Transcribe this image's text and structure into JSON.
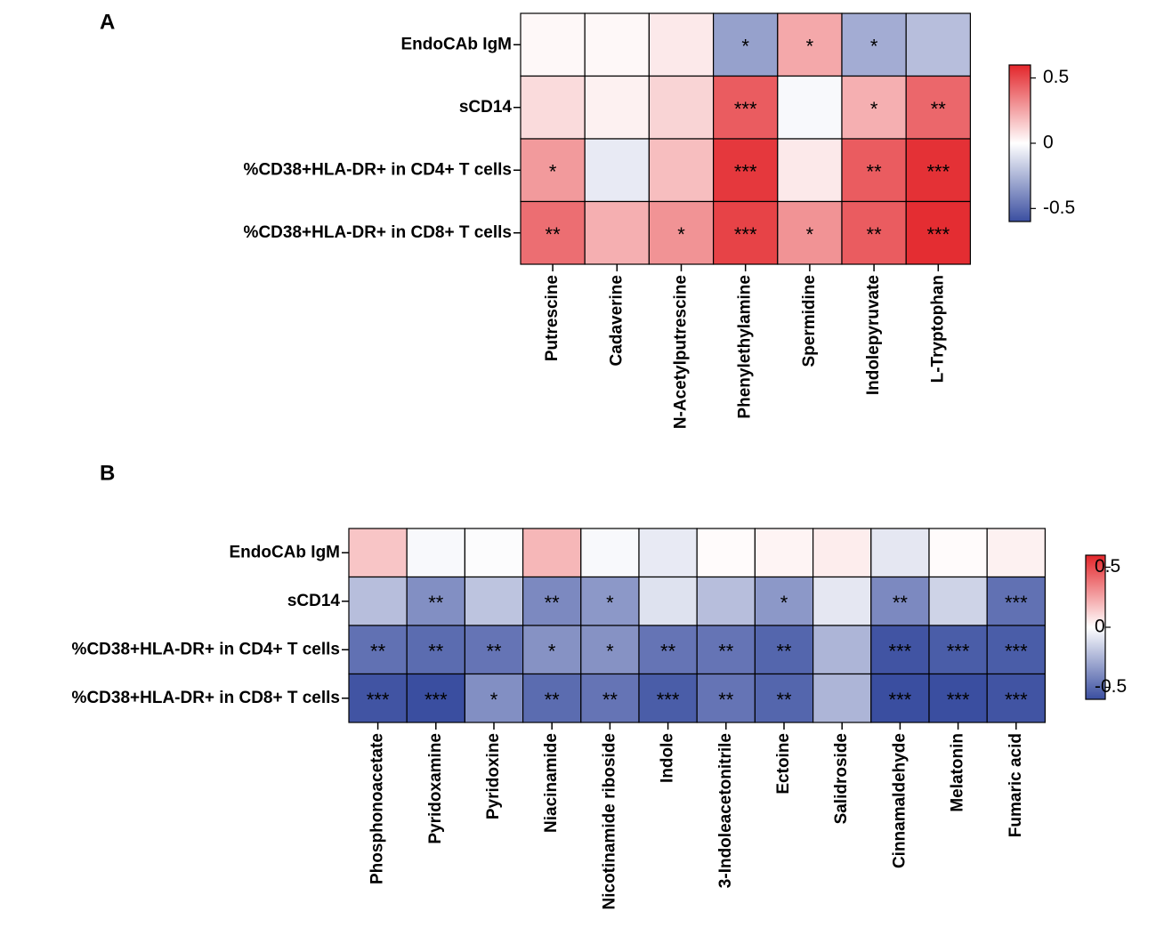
{
  "colors": {
    "negative": "#3a4ea0",
    "neutral": "#ffffff",
    "positive": "#e3262b",
    "grid": "#000000"
  },
  "chart_data": [
    {
      "type": "heatmap",
      "panel_label": "A",
      "title": "",
      "rows": [
        "EndoCAb IgM",
        "sCD14",
        "%CD38+HLA-DR+ in CD4+ T cells",
        "%CD38+HLA-DR+ in CD8+ T cells"
      ],
      "columns": [
        "Putrescine",
        "Cadaverine",
        "N-Acetylputrescine",
        "Phenylethylamine",
        "Spermidine",
        "Indolepyruvate",
        "L-Tryptophan"
      ],
      "values": [
        [
          0.02,
          0.02,
          0.06,
          -0.32,
          0.24,
          -0.28,
          -0.22
        ],
        [
          0.1,
          0.04,
          0.12,
          0.45,
          -0.02,
          0.22,
          0.42
        ],
        [
          0.28,
          -0.07,
          0.18,
          0.55,
          0.06,
          0.45,
          0.57
        ],
        [
          0.4,
          0.22,
          0.3,
          0.52,
          0.3,
          0.45,
          0.58
        ]
      ],
      "significance": [
        [
          "",
          "",
          "",
          "*",
          "*",
          "*",
          ""
        ],
        [
          "",
          "",
          "",
          "***",
          "",
          "*",
          "**"
        ],
        [
          "*",
          "",
          "",
          "***",
          "",
          "**",
          "***"
        ],
        [
          "**",
          "",
          "*",
          "***",
          "*",
          "**",
          "***"
        ]
      ],
      "colorbar": {
        "min": -0.6,
        "max": 0.6,
        "ticks": [
          0.5,
          0,
          -0.5
        ],
        "tick_labels": [
          "0.5",
          "0",
          "-0.5"
        ]
      }
    },
    {
      "type": "heatmap",
      "panel_label": "B",
      "title": "",
      "rows": [
        "EndoCAb IgM",
        "sCD14",
        "%CD38+HLA-DR+ in CD4+ T cells",
        "%CD38+HLA-DR+ in CD8+ T cells"
      ],
      "columns": [
        "Phosphonoacetate",
        "Pyridoxamine",
        "Pyridoxine",
        "Niacinamide",
        "Nicotinamide riboside",
        "Indole",
        "3-Indoleacetonitrile",
        "Ectoine",
        "Salidroside",
        "Cinnamaldehyde",
        "Melatonin",
        "Fumaric acid"
      ],
      "values": [
        [
          0.16,
          -0.02,
          -0.01,
          0.2,
          -0.02,
          -0.07,
          0.01,
          0.03,
          0.05,
          -0.08,
          0.01,
          0.04
        ],
        [
          -0.22,
          -0.38,
          -0.2,
          -0.4,
          -0.35,
          -0.1,
          -0.22,
          -0.35,
          -0.08,
          -0.4,
          -0.15,
          -0.48
        ],
        [
          -0.48,
          -0.5,
          -0.47,
          -0.37,
          -0.37,
          -0.47,
          -0.47,
          -0.52,
          -0.25,
          -0.58,
          -0.55,
          -0.55
        ],
        [
          -0.58,
          -0.6,
          -0.38,
          -0.5,
          -0.47,
          -0.55,
          -0.47,
          -0.52,
          -0.25,
          -0.6,
          -0.6,
          -0.58
        ]
      ],
      "significance": [
        [
          "",
          "",
          "",
          "",
          "",
          "",
          "",
          "",
          "",
          "",
          "",
          ""
        ],
        [
          "",
          "**",
          "",
          "**",
          "*",
          "",
          "",
          "*",
          "",
          "**",
          "",
          "***"
        ],
        [
          "**",
          "**",
          "**",
          "*",
          "*",
          "**",
          "**",
          "**",
          "",
          "***",
          "***",
          "***"
        ],
        [
          "***",
          "***",
          "*",
          "**",
          "**",
          "***",
          "**",
          "**",
          "",
          "***",
          "***",
          "***"
        ]
      ],
      "colorbar": {
        "min": -0.6,
        "max": 0.6,
        "ticks": [
          0.5,
          0,
          -0.5
        ],
        "tick_labels": [
          "0.5",
          "0",
          "-0.5"
        ]
      }
    }
  ]
}
